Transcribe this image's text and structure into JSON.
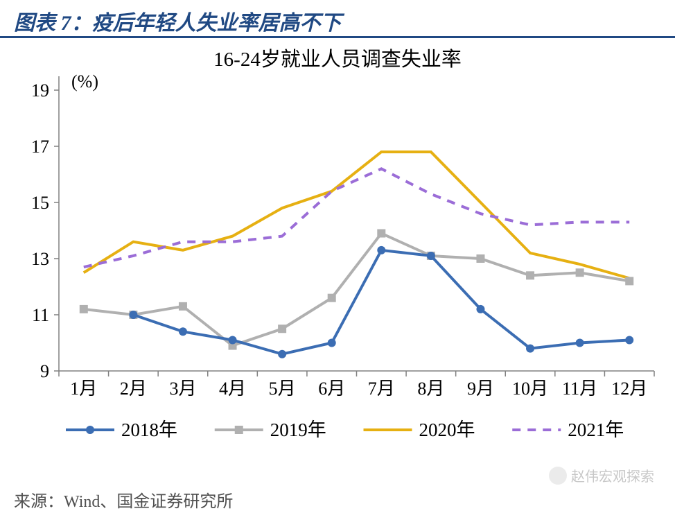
{
  "header": {
    "title": "图表 7：疫后年轻人失业率居高不下"
  },
  "chart": {
    "type": "line",
    "title": "16-24岁就业人员调查失业率",
    "title_fontsize": 29,
    "title_color": "#000000",
    "ylabel_unit": "(%)",
    "ylabel_fontsize": 26,
    "ylim": [
      9,
      19
    ],
    "ytick_step": 2,
    "yticks": [
      9,
      11,
      13,
      15,
      17,
      19
    ],
    "xticks": [
      "1月",
      "2月",
      "3月",
      "4月",
      "5月",
      "6月",
      "7月",
      "8月",
      "9月",
      "10月",
      "11月",
      "12月"
    ],
    "axis_color": "#808080",
    "axis_label_color": "#000000",
    "axis_label_fontsize": 26,
    "background_color": "#ffffff",
    "series": [
      {
        "name": "2018年",
        "color": "#3b6db3",
        "dash": "solid",
        "marker": "circle",
        "marker_size": 6,
        "line_width": 4,
        "values": [
          null,
          11.0,
          10.4,
          10.1,
          9.6,
          10.0,
          13.3,
          13.1,
          11.2,
          9.8,
          10.0,
          10.1
        ]
      },
      {
        "name": "2019年",
        "color": "#b0b0b0",
        "dash": "solid",
        "marker": "square",
        "marker_size": 6,
        "line_width": 4,
        "values": [
          11.2,
          11.0,
          11.3,
          9.9,
          10.5,
          11.6,
          13.9,
          13.1,
          13.0,
          12.4,
          12.5,
          12.2
        ]
      },
      {
        "name": "2020年",
        "color": "#e6b012",
        "dash": "solid",
        "marker": "none",
        "marker_size": 0,
        "line_width": 4,
        "values": [
          12.5,
          13.6,
          13.3,
          13.8,
          14.8,
          15.4,
          16.8,
          16.8,
          15.0,
          13.2,
          12.8,
          12.3
        ]
      },
      {
        "name": "2021年",
        "color": "#9b6dd7",
        "dash": "dashed",
        "marker": "none",
        "marker_size": 0,
        "line_width": 4,
        "values": [
          12.7,
          13.1,
          13.6,
          13.6,
          13.8,
          15.4,
          16.2,
          15.3,
          14.6,
          14.2,
          14.3,
          14.3
        ]
      }
    ],
    "legend": {
      "position": "bottom",
      "fontsize": 27,
      "items": [
        "2018年",
        "2019年",
        "2020年",
        "2021年"
      ]
    }
  },
  "footer": {
    "source": "来源：Wind、国金证券研究所"
  },
  "watermark": {
    "text": "赵伟宏观探索"
  }
}
